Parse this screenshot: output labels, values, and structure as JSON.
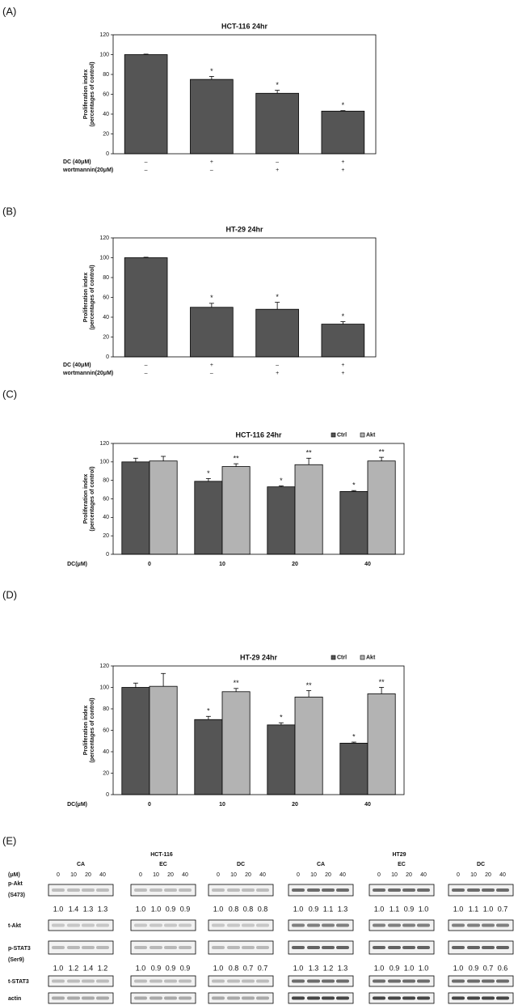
{
  "panel_labels": [
    "(A)",
    "(B)",
    "(C)",
    "(D)",
    "(E)"
  ],
  "chart_data": [
    {
      "type": "bar",
      "title": "HCT-116 24hr",
      "ylabel": [
        "Proliferation index",
        "(percentages of control)"
      ],
      "ylim": [
        0,
        120
      ],
      "yticks": [
        0,
        20,
        40,
        60,
        80,
        100,
        120
      ],
      "grid": false,
      "series": [
        {
          "color": "#555555",
          "values": [
            100,
            75,
            61,
            43
          ],
          "errors": [
            0.5,
            3,
            3,
            0.5
          ],
          "annotations": [
            null,
            "*",
            "*",
            "*"
          ]
        }
      ],
      "conditions": [
        {
          "name": "DC (40μM)",
          "values": [
            "–",
            "+",
            "–",
            "+"
          ]
        },
        {
          "name": "wortmannin(20μM)",
          "values": [
            "–",
            "–",
            "+",
            "+"
          ]
        }
      ]
    },
    {
      "type": "bar",
      "title": "HT-29 24hr",
      "ylabel": [
        "Proliferation index",
        "(percentages of control)"
      ],
      "ylim": [
        0,
        120
      ],
      "yticks": [
        0,
        20,
        40,
        60,
        80,
        100,
        120
      ],
      "grid": false,
      "series": [
        {
          "color": "#555555",
          "values": [
            100,
            50,
            48,
            33
          ],
          "errors": [
            0.5,
            4,
            7,
            2.5
          ],
          "annotations": [
            null,
            "*",
            "*",
            "*"
          ]
        }
      ],
      "conditions": [
        {
          "name": "DC (40μM)",
          "values": [
            "–",
            "+",
            "–",
            "+"
          ]
        },
        {
          "name": "wortmannin(20μM)",
          "values": [
            "–",
            "–",
            "+",
            "+"
          ]
        }
      ]
    },
    {
      "type": "bar",
      "title": "HCT-116 24hr",
      "ylabel": [
        "Proliferation index",
        "(percentages of control)"
      ],
      "xlabel": "DC(μM)",
      "categories": [
        "0",
        "10",
        "20",
        "40"
      ],
      "legend": "top-right",
      "ylim": [
        0,
        120
      ],
      "yticks": [
        0,
        20,
        40,
        60,
        80,
        100,
        120
      ],
      "grid": false,
      "series": [
        {
          "name": "Ctrl",
          "color": "#555555",
          "values": [
            100,
            79,
            73,
            68
          ],
          "errors": [
            4,
            3,
            1,
            1
          ],
          "annotations": [
            null,
            "*",
            "*",
            "*"
          ]
        },
        {
          "name": "Akt",
          "color": "#b3b3b3",
          "values": [
            101,
            95,
            97,
            101
          ],
          "errors": [
            5,
            3,
            7,
            4
          ],
          "annotations": [
            null,
            "**",
            "**",
            "**"
          ]
        }
      ]
    },
    {
      "type": "bar",
      "title": "HT-29 24hr",
      "ylabel": [
        "Proliferation index",
        "(percentages of control)"
      ],
      "xlabel": "DC(μM)",
      "categories": [
        "0",
        "10",
        "20",
        "40"
      ],
      "legend": "top-right",
      "ylim": [
        0,
        120
      ],
      "yticks": [
        0,
        20,
        40,
        60,
        80,
        100,
        120
      ],
      "grid": false,
      "series": [
        {
          "name": "Ctrl",
          "color": "#555555",
          "values": [
            100,
            70,
            65,
            48
          ],
          "errors": [
            4,
            3,
            2,
            1
          ],
          "annotations": [
            null,
            "*",
            "*",
            "*"
          ]
        },
        {
          "name": "Akt",
          "color": "#b3b3b3",
          "values": [
            101,
            96,
            91,
            94
          ],
          "errors": [
            12,
            3,
            6,
            6
          ],
          "annotations": [
            null,
            "**",
            "**",
            "**"
          ]
        }
      ]
    }
  ],
  "blot": {
    "cell_lines": [
      "HCT-116",
      "HT29"
    ],
    "treatments": [
      "CA",
      "EC",
      "DC",
      "CA",
      "EC",
      "DC"
    ],
    "unit": "(μM)",
    "doses": [
      "0",
      "10",
      "20",
      "40"
    ],
    "row_labels": [
      "p-Akt",
      "(S473)",
      "t-Akt",
      "p-STAT3",
      "(Ser9)",
      "t-STAT3",
      "actin"
    ],
    "quantification": [
      [
        [
          "1.0",
          "1.4",
          "1.3",
          "1.3"
        ],
        [
          "1.0",
          "1.0",
          "0.9",
          "0.9"
        ],
        [
          "1.0",
          "0.8",
          "0.8",
          "0.8"
        ],
        [
          "1.0",
          "0.9",
          "1.1",
          "1.3"
        ],
        [
          "1.0",
          "1.1",
          "0.9",
          "1.0"
        ],
        [
          "1.0",
          "1.1",
          "1.0",
          "0.7"
        ]
      ],
      [
        [
          "1.0",
          "1.2",
          "1.4",
          "1.2"
        ],
        [
          "1.0",
          "0.9",
          "0.9",
          "0.9"
        ],
        [
          "1.0",
          "0.8",
          "0.7",
          "0.7"
        ],
        [
          "1.0",
          "1.3",
          "1.2",
          "1.3"
        ],
        [
          "1.0",
          "0.9",
          "1.0",
          "1.0"
        ],
        [
          "1.0",
          "0.9",
          "0.7",
          "0.6"
        ]
      ]
    ]
  }
}
